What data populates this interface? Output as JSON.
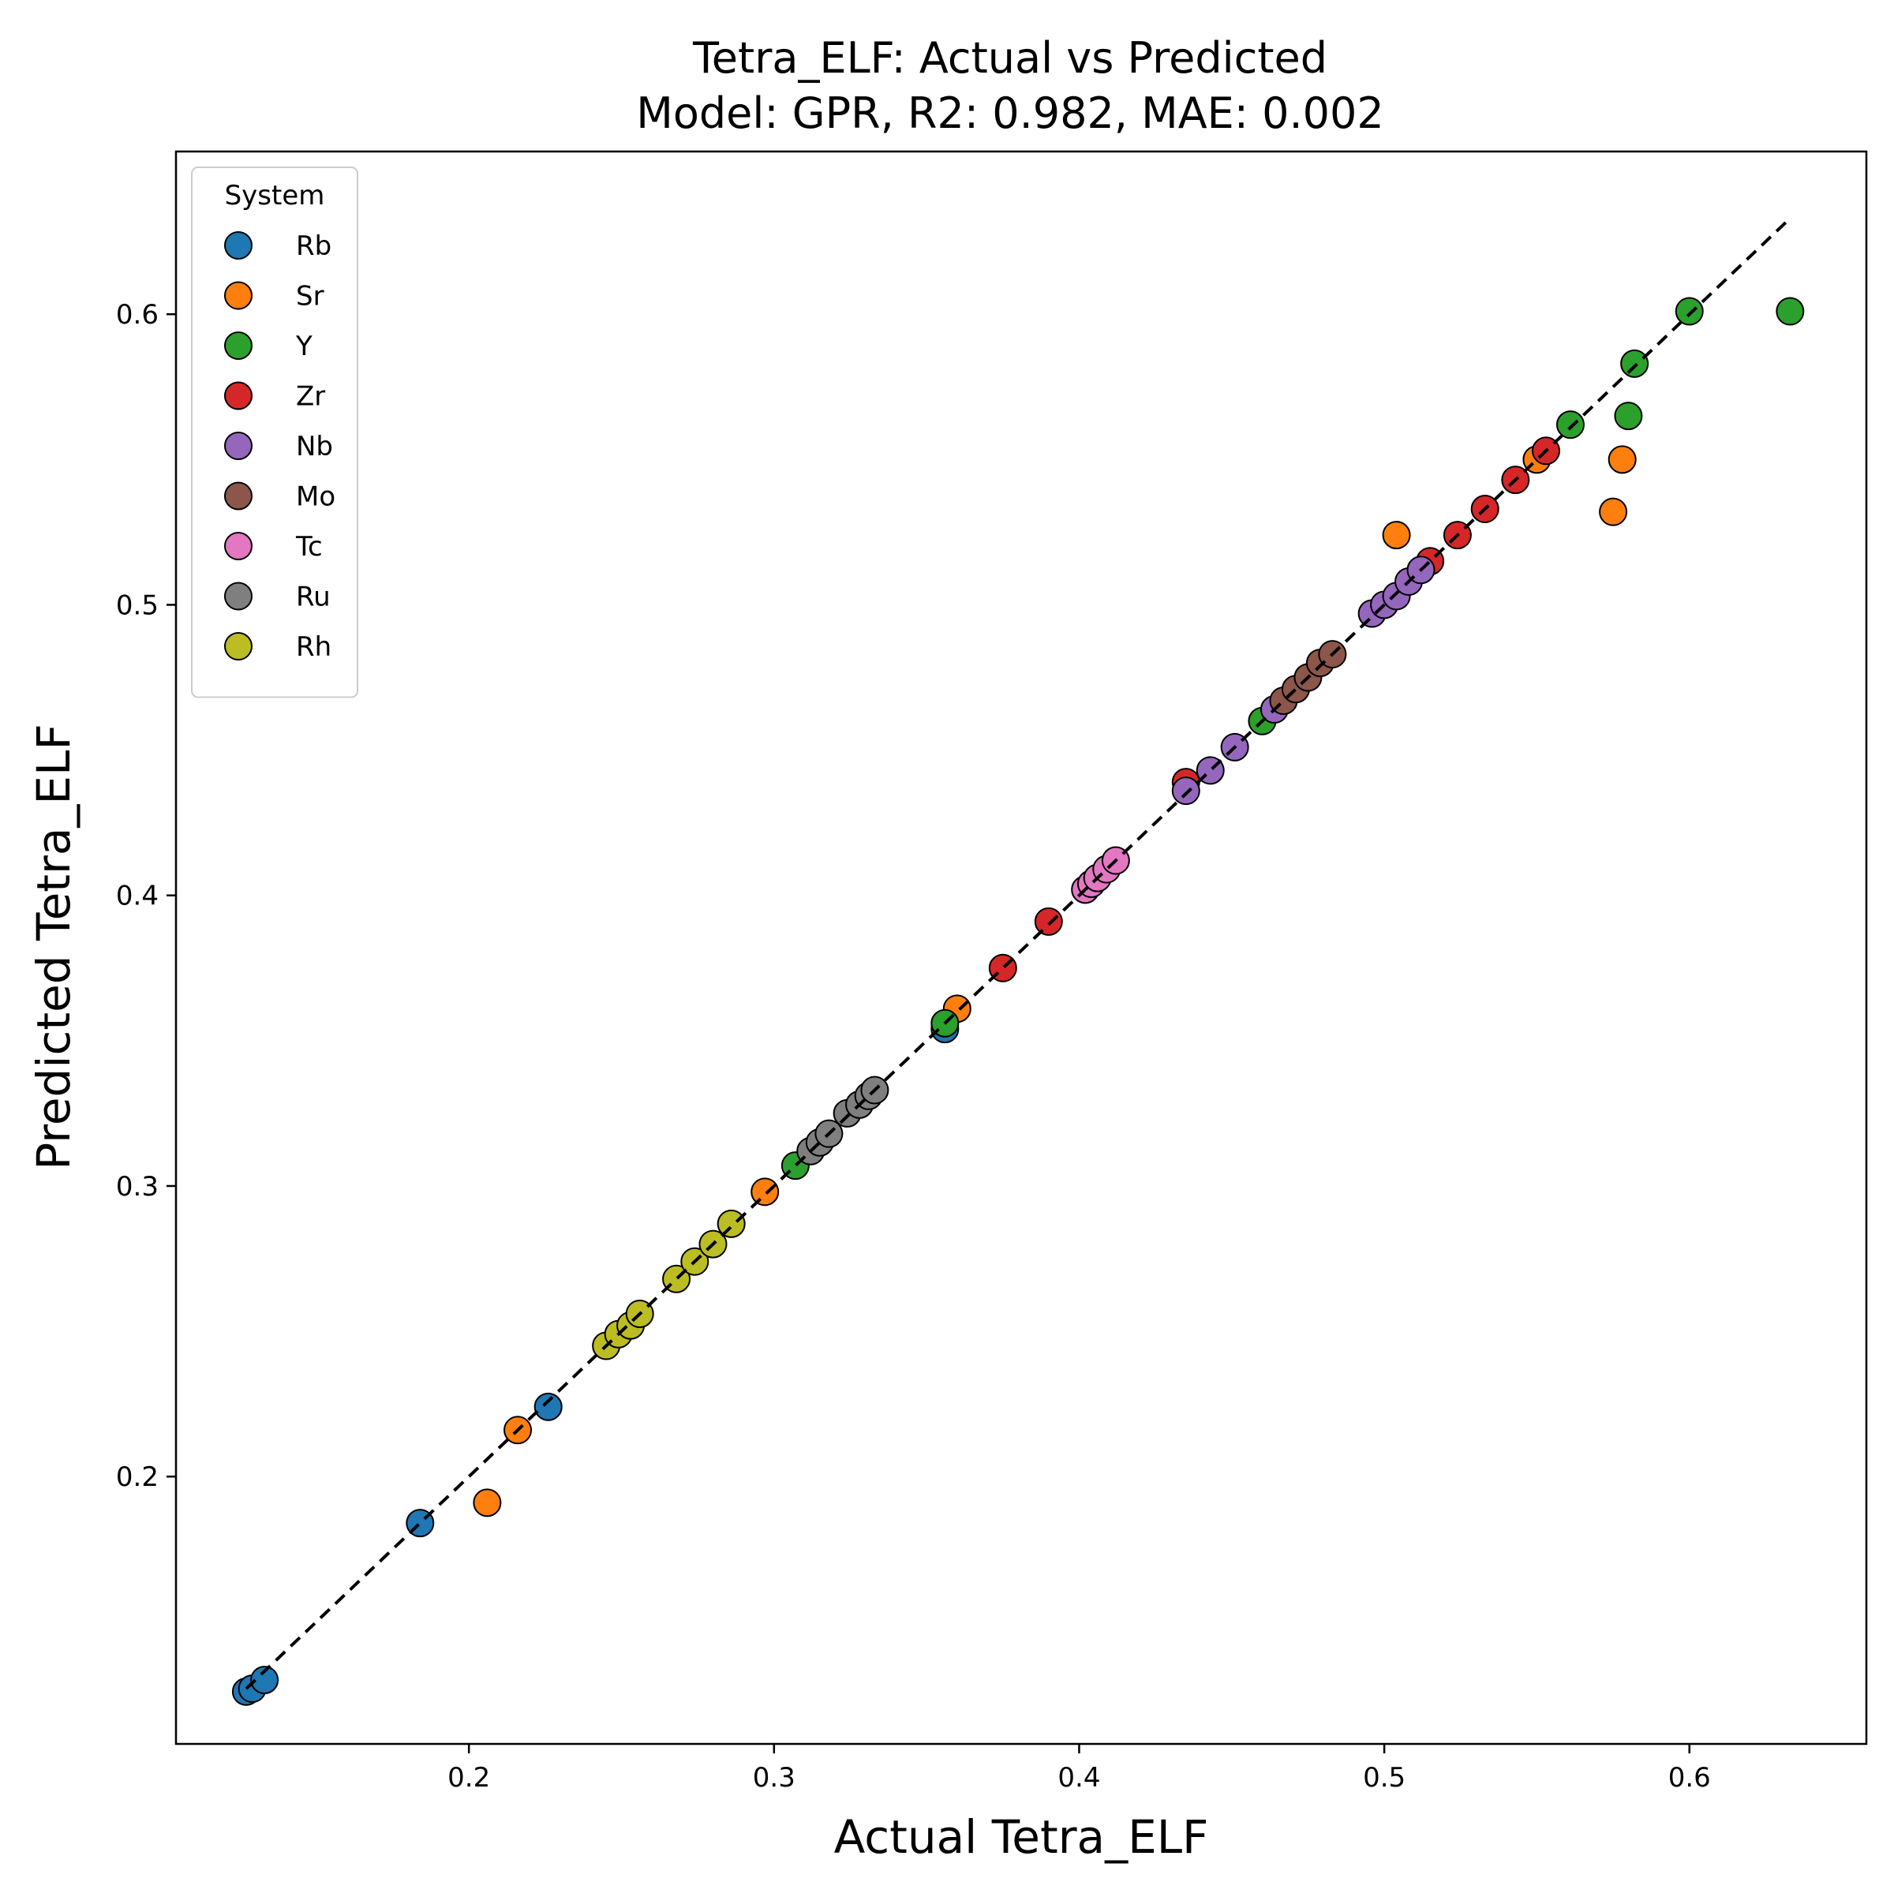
{
  "chart_data": {
    "type": "scatter",
    "title": "Tetra_ELF: Actual vs Predicted",
    "subtitle": "Model: GPR, R2: 0.982, MAE: 0.002",
    "xlabel": "Actual Tetra_ELF",
    "ylabel": "Predicted Tetra_ELF",
    "xlim": [
      0.104,
      0.658
    ],
    "ylim": [
      0.108,
      0.656
    ],
    "xticks": [
      0.2,
      0.3,
      0.4,
      0.5,
      0.6
    ],
    "yticks": [
      0.2,
      0.3,
      0.4,
      0.5,
      0.6
    ],
    "tick_labels_x": [
      "0.2",
      "0.3",
      "0.4",
      "0.5",
      "0.6"
    ],
    "tick_labels_y": [
      "0.2",
      "0.3",
      "0.4",
      "0.5",
      "0.6"
    ],
    "grid": false,
    "legend": {
      "title": "System",
      "placement": "top-left"
    },
    "reference_line": {
      "style": "dashed",
      "color": "#000000",
      "from": [
        0.127,
        0.127
      ],
      "to": [
        0.633,
        0.633
      ]
    },
    "series": [
      {
        "name": "Rb",
        "color": "#1f77b4",
        "points": [
          [
            0.127,
            0.126
          ],
          [
            0.129,
            0.127
          ],
          [
            0.133,
            0.13
          ],
          [
            0.184,
            0.184
          ],
          [
            0.226,
            0.224
          ],
          [
            0.356,
            0.354
          ]
        ]
      },
      {
        "name": "Sr",
        "color": "#ff7f0e",
        "points": [
          [
            0.206,
            0.191
          ],
          [
            0.216,
            0.216
          ],
          [
            0.297,
            0.298
          ],
          [
            0.36,
            0.361
          ],
          [
            0.504,
            0.524
          ],
          [
            0.55,
            0.55
          ],
          [
            0.575,
            0.532
          ],
          [
            0.578,
            0.55
          ]
        ]
      },
      {
        "name": "Y",
        "color": "#2ca02c",
        "points": [
          [
            0.307,
            0.307
          ],
          [
            0.356,
            0.356
          ],
          [
            0.46,
            0.46
          ],
          [
            0.561,
            0.562
          ],
          [
            0.58,
            0.565
          ],
          [
            0.582,
            0.583
          ],
          [
            0.6,
            0.601
          ],
          [
            0.633,
            0.601
          ]
        ]
      },
      {
        "name": "Zr",
        "color": "#d62728",
        "points": [
          [
            0.375,
            0.375
          ],
          [
            0.39,
            0.391
          ],
          [
            0.435,
            0.439
          ],
          [
            0.515,
            0.515
          ],
          [
            0.524,
            0.524
          ],
          [
            0.533,
            0.533
          ],
          [
            0.543,
            0.543
          ],
          [
            0.553,
            0.553
          ]
        ]
      },
      {
        "name": "Nb",
        "color": "#9467bd",
        "points": [
          [
            0.435,
            0.436
          ],
          [
            0.443,
            0.443
          ],
          [
            0.451,
            0.451
          ],
          [
            0.464,
            0.464
          ],
          [
            0.496,
            0.497
          ],
          [
            0.5,
            0.5
          ],
          [
            0.504,
            0.503
          ],
          [
            0.508,
            0.508
          ],
          [
            0.512,
            0.512
          ]
        ]
      },
      {
        "name": "Mo",
        "color": "#8c564b",
        "points": [
          [
            0.467,
            0.467
          ],
          [
            0.471,
            0.471
          ],
          [
            0.475,
            0.475
          ],
          [
            0.479,
            0.48
          ],
          [
            0.483,
            0.483
          ]
        ]
      },
      {
        "name": "Tc",
        "color": "#e377c2",
        "points": [
          [
            0.402,
            0.402
          ],
          [
            0.404,
            0.404
          ],
          [
            0.406,
            0.406
          ],
          [
            0.409,
            0.409
          ],
          [
            0.412,
            0.412
          ]
        ]
      },
      {
        "name": "Ru",
        "color": "#7f7f7f",
        "points": [
          [
            0.312,
            0.312
          ],
          [
            0.315,
            0.315
          ],
          [
            0.318,
            0.318
          ],
          [
            0.324,
            0.325
          ],
          [
            0.328,
            0.328
          ],
          [
            0.331,
            0.331
          ],
          [
            0.333,
            0.333
          ]
        ]
      },
      {
        "name": "Rh",
        "color": "#bcbd22",
        "points": [
          [
            0.245,
            0.245
          ],
          [
            0.249,
            0.249
          ],
          [
            0.253,
            0.252
          ],
          [
            0.256,
            0.256
          ],
          [
            0.268,
            0.268
          ],
          [
            0.274,
            0.274
          ],
          [
            0.28,
            0.28
          ],
          [
            0.286,
            0.287
          ]
        ]
      }
    ]
  }
}
